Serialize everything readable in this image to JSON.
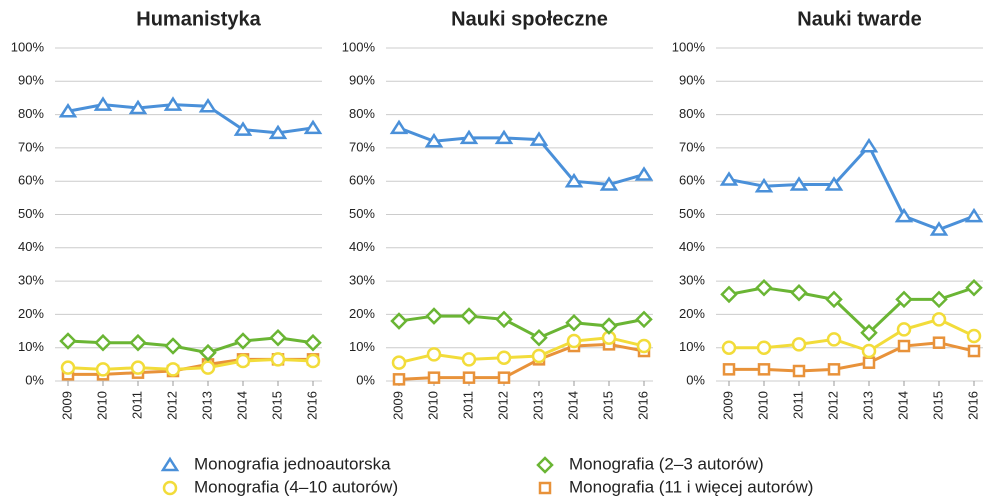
{
  "chart_data": [
    {
      "type": "line",
      "title": "Humanistyka",
      "categories": [
        "2009",
        "2010",
        "2011",
        "2012",
        "2013",
        "2014",
        "2015",
        "2016"
      ],
      "series": [
        {
          "values": [
            81,
            83,
            82,
            83,
            82.5,
            75.5,
            74.5,
            76
          ]
        },
        {
          "values": [
            12,
            11.5,
            11.5,
            10.5,
            8.5,
            12,
            13,
            11.5
          ]
        },
        {
          "values": [
            4,
            3.5,
            4,
            3.5,
            4,
            6,
            6.5,
            6
          ]
        },
        {
          "values": [
            2,
            2,
            2.5,
            3,
            5,
            6.5,
            6.5,
            6.5
          ]
        }
      ],
      "ylim": [
        0,
        100
      ],
      "yticks": [
        {
          "value": 0,
          "label": "0%"
        },
        {
          "value": 10,
          "label": "10%"
        },
        {
          "value": 20,
          "label": "20%"
        },
        {
          "value": 30,
          "label": "30%"
        },
        {
          "value": 40,
          "label": "40%"
        },
        {
          "value": 50,
          "label": "50%"
        },
        {
          "value": 60,
          "label": "60%"
        },
        {
          "value": 70,
          "label": "70%"
        },
        {
          "value": 80,
          "label": "80%"
        },
        {
          "value": 90,
          "label": "90%"
        },
        {
          "value": 100,
          "label": "100%"
        }
      ],
      "grid": true
    },
    {
      "type": "line",
      "title": "Nauki społeczne",
      "categories": [
        "2009",
        "2010",
        "2011",
        "2012",
        "2013",
        "2014",
        "2015",
        "2016"
      ],
      "series": [
        {
          "values": [
            76,
            72,
            73,
            73,
            72.5,
            60,
            59,
            62
          ]
        },
        {
          "values": [
            18,
            19.5,
            19.5,
            18.5,
            13,
            17.5,
            16.5,
            18.5
          ]
        },
        {
          "values": [
            5.5,
            8,
            6.5,
            7,
            7.5,
            12,
            13,
            10.5
          ]
        },
        {
          "values": [
            0.5,
            1,
            1,
            1,
            6.5,
            10.5,
            11,
            9
          ]
        }
      ],
      "ylim": [
        0,
        100
      ],
      "yticks": [
        {
          "value": 0,
          "label": "0%"
        },
        {
          "value": 10,
          "label": "10%"
        },
        {
          "value": 20,
          "label": "20%"
        },
        {
          "value": 30,
          "label": "30%"
        },
        {
          "value": 40,
          "label": "40%"
        },
        {
          "value": 50,
          "label": "50%"
        },
        {
          "value": 60,
          "label": "60%"
        },
        {
          "value": 70,
          "label": "70%"
        },
        {
          "value": 80,
          "label": "80%"
        },
        {
          "value": 90,
          "label": "90%"
        },
        {
          "value": 100,
          "label": "100%"
        }
      ],
      "grid": true
    },
    {
      "type": "line",
      "title": "Nauki twarde",
      "categories": [
        "2009",
        "2010",
        "2011",
        "2012",
        "2013",
        "2014",
        "2015",
        "2016"
      ],
      "series": [
        {
          "values": [
            60.5,
            58.5,
            59,
            59,
            70.5,
            49.5,
            45.5,
            49.5
          ]
        },
        {
          "values": [
            26,
            28,
            26.5,
            24.5,
            14.5,
            24.5,
            24.5,
            28
          ]
        },
        {
          "values": [
            10,
            10,
            11,
            12.5,
            9,
            15.5,
            18.5,
            13.5
          ]
        },
        {
          "values": [
            3.5,
            3.5,
            3,
            3.5,
            5.5,
            10.5,
            11.5,
            9
          ]
        }
      ],
      "ylim": [
        0,
        100
      ],
      "yticks": [
        {
          "value": 0,
          "label": "0%"
        },
        {
          "value": 10,
          "label": "10%"
        },
        {
          "value": 20,
          "label": "20%"
        },
        {
          "value": 30,
          "label": "30%"
        },
        {
          "value": 40,
          "label": "40%"
        },
        {
          "value": 50,
          "label": "50%"
        },
        {
          "value": 60,
          "label": "60%"
        },
        {
          "value": 70,
          "label": "70%"
        },
        {
          "value": 80,
          "label": "80%"
        },
        {
          "value": 90,
          "label": "90%"
        },
        {
          "value": 100,
          "label": "100%"
        }
      ],
      "grid": true
    }
  ],
  "legend": [
    {
      "name": "Monografia jednoautorska",
      "color": "#4a90d9",
      "marker": "triangle"
    },
    {
      "name": "Monografia (2–3 autorów)",
      "color": "#6ab534",
      "marker": "diamond"
    },
    {
      "name": "Monografia (4–10 autorów)",
      "color": "#f2dc3a",
      "marker": "circle"
    },
    {
      "name": "Monografia (11 i więcej autorów)",
      "color": "#e8923a",
      "marker": "square"
    }
  ]
}
